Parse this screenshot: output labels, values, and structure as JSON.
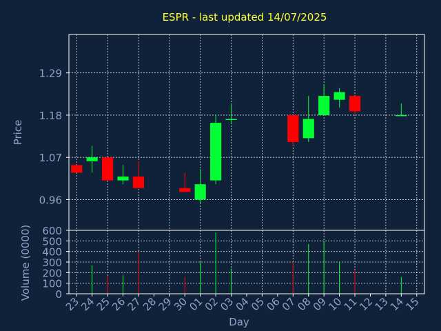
{
  "title": "ESPR - last updated 14/07/2025",
  "colors": {
    "background": "#10223a",
    "up": "#00ff33",
    "down": "#ff0000",
    "title": "#ffff33",
    "text": "#8fa3c8",
    "grid": "#ffffff"
  },
  "chart_data": [
    {
      "type": "candlestick",
      "ylabel": "Price",
      "ylim": [
        0.88,
        1.39
      ],
      "yticks": [
        "0.96",
        "1.07",
        "1.18",
        "1.29"
      ],
      "grid": true,
      "categories": [
        "23",
        "24",
        "25",
        "26",
        "27",
        "28",
        "29",
        "30",
        "01",
        "02",
        "03",
        "04",
        "05",
        "06",
        "07",
        "08",
        "09",
        "10",
        "11",
        "12",
        "13",
        "14",
        "15"
      ],
      "candles": [
        {
          "x": "23",
          "open": 1.05,
          "high": 1.05,
          "low": 1.03,
          "close": 1.03
        },
        {
          "x": "24",
          "open": 1.06,
          "high": 1.1,
          "low": 1.03,
          "close": 1.07
        },
        {
          "x": "25",
          "open": 1.07,
          "high": 1.07,
          "low": 1.01,
          "close": 1.01
        },
        {
          "x": "26",
          "open": 1.01,
          "high": 1.05,
          "low": 1.0,
          "close": 1.02
        },
        {
          "x": "27",
          "open": 1.02,
          "high": 1.06,
          "low": 0.99,
          "close": 0.99
        },
        {
          "x": "30",
          "open": 0.99,
          "high": 1.03,
          "low": 0.98,
          "close": 0.98
        },
        {
          "x": "01",
          "open": 0.96,
          "high": 1.04,
          "low": 0.95,
          "close": 1.0
        },
        {
          "x": "02",
          "open": 1.01,
          "high": 1.18,
          "low": 1.0,
          "close": 1.16
        },
        {
          "x": "03",
          "open": 1.17,
          "high": 1.21,
          "low": 1.16,
          "close": 1.17
        },
        {
          "x": "07",
          "open": 1.18,
          "high": 1.18,
          "low": 1.1,
          "close": 1.11
        },
        {
          "x": "08",
          "open": 1.12,
          "high": 1.23,
          "low": 1.11,
          "close": 1.17
        },
        {
          "x": "09",
          "open": 1.18,
          "high": 1.26,
          "low": 1.18,
          "close": 1.23
        },
        {
          "x": "10",
          "open": 1.22,
          "high": 1.25,
          "low": 1.2,
          "close": 1.24
        },
        {
          "x": "11",
          "open": 1.23,
          "high": 1.23,
          "low": 1.18,
          "close": 1.19
        },
        {
          "x": "14",
          "open": 1.18,
          "high": 1.21,
          "low": 1.18,
          "close": 1.18
        }
      ]
    },
    {
      "type": "bar",
      "xlabel": "Day",
      "ylabel": "Volume (0000)",
      "ylim": [
        0,
        600
      ],
      "yticks": [
        "0",
        "100",
        "200",
        "300",
        "400",
        "500",
        "600"
      ],
      "grid": true,
      "categories": [
        "23",
        "24",
        "25",
        "26",
        "27",
        "28",
        "29",
        "30",
        "01",
        "02",
        "03",
        "04",
        "05",
        "06",
        "07",
        "08",
        "09",
        "10",
        "11",
        "12",
        "13",
        "14",
        "15"
      ],
      "bars": [
        {
          "x": "24",
          "value": 270,
          "direction": "up"
        },
        {
          "x": "25",
          "value": 170,
          "direction": "down"
        },
        {
          "x": "26",
          "value": 180,
          "direction": "up"
        },
        {
          "x": "27",
          "value": 400,
          "direction": "down"
        },
        {
          "x": "30",
          "value": 160,
          "direction": "down"
        },
        {
          "x": "01",
          "value": 300,
          "direction": "up"
        },
        {
          "x": "02",
          "value": 580,
          "direction": "up"
        },
        {
          "x": "03",
          "value": 240,
          "direction": "up"
        },
        {
          "x": "07",
          "value": 300,
          "direction": "down"
        },
        {
          "x": "08",
          "value": 470,
          "direction": "up"
        },
        {
          "x": "09",
          "value": 500,
          "direction": "up"
        },
        {
          "x": "10",
          "value": 300,
          "direction": "up"
        },
        {
          "x": "11",
          "value": 220,
          "direction": "down"
        },
        {
          "x": "14",
          "value": 160,
          "direction": "up"
        }
      ]
    }
  ]
}
